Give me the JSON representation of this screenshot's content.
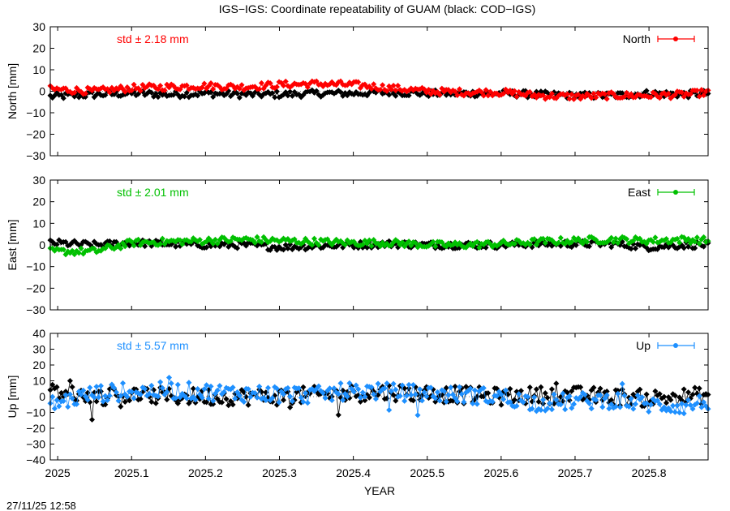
{
  "title": "IGS−IGS: Coordinate repeatability of GUAM (black: COD−IGS)",
  "timestamp": "27/11/25 12:58",
  "xlabel": "YEAR",
  "x_ticks": [
    "2025",
    "2025.1",
    "2025.2",
    "2025.3",
    "2025.4",
    "2025.5",
    "2025.6",
    "2025.7",
    "2025.8"
  ],
  "chart_data": [
    {
      "type": "line",
      "panel": "north",
      "ylabel": "North [mm]",
      "legend": "North",
      "std_label": "std ± 2.18 mm",
      "color": "#ff0000",
      "ref_color": "#000000",
      "legend_position": "top-right",
      "xlim": [
        2024.99,
        2025.88
      ],
      "ylim": [
        -30,
        30
      ],
      "y_ticks": [
        "30",
        "20",
        "10",
        "0",
        "−10",
        "−20",
        "−30"
      ],
      "main_series": {
        "name": "North",
        "x": [
          2024.99,
          2025.05,
          2025.1,
          2025.15,
          2025.2,
          2025.25,
          2025.3,
          2025.35,
          2025.4,
          2025.45,
          2025.5,
          2025.55,
          2025.6,
          2025.65,
          2025.7,
          2025.75,
          2025.8,
          2025.85,
          2025.88
        ],
        "y": [
          1,
          0,
          1.5,
          2,
          2.5,
          2,
          3,
          3.5,
          3,
          1.5,
          0,
          -0.5,
          -0.5,
          -2,
          -2.5,
          -2,
          -2,
          -1.5,
          -0.5
        ]
      },
      "reference_series": {
        "x": [
          2024.99,
          2025.05,
          2025.1,
          2025.15,
          2025.2,
          2025.25,
          2025.3,
          2025.35,
          2025.4,
          2025.45,
          2025.5,
          2025.55,
          2025.6,
          2025.65,
          2025.7,
          2025.75,
          2025.8,
          2025.85,
          2025.88
        ],
        "y": [
          -2.5,
          -1.5,
          -1,
          -1.5,
          -1,
          -1.5,
          -1.5,
          -1,
          -1,
          -0.5,
          -1,
          -1,
          -1,
          -1.5,
          -2,
          -2,
          -1,
          -1.5,
          -1
        ]
      }
    },
    {
      "type": "line",
      "panel": "east",
      "ylabel": "East [mm]",
      "legend": "East",
      "std_label": "std ± 2.01 mm",
      "color": "#00c000",
      "ref_color": "#000000",
      "legend_position": "top-right",
      "xlim": [
        2024.99,
        2025.88
      ],
      "ylim": [
        -30,
        30
      ],
      "y_ticks": [
        "30",
        "20",
        "10",
        "0",
        "−10",
        "−20",
        "−30"
      ],
      "main_series": {
        "name": "East",
        "x": [
          2024.99,
          2025.05,
          2025.1,
          2025.15,
          2025.2,
          2025.25,
          2025.3,
          2025.35,
          2025.4,
          2025.45,
          2025.5,
          2025.55,
          2025.6,
          2025.65,
          2025.7,
          2025.75,
          2025.8,
          2025.85,
          2025.88
        ],
        "y": [
          -3,
          -3,
          1,
          1.5,
          2,
          2.5,
          2,
          1.5,
          1,
          1,
          0,
          0,
          0.5,
          1.5,
          2,
          2.5,
          2,
          2.5,
          2
        ]
      },
      "reference_series": {
        "x": [
          2024.99,
          2025.05,
          2025.1,
          2025.15,
          2025.2,
          2025.25,
          2025.3,
          2025.35,
          2025.4,
          2025.45,
          2025.5,
          2025.55,
          2025.6,
          2025.65,
          2025.7,
          2025.75,
          2025.8,
          2025.85,
          2025.88
        ],
        "y": [
          1,
          0,
          1,
          0.5,
          0,
          0,
          -1,
          -0.5,
          0,
          0.5,
          0,
          0,
          0,
          0.5,
          0.5,
          0.5,
          -1,
          0,
          0
        ]
      }
    },
    {
      "type": "line",
      "panel": "up",
      "ylabel": "Up [mm]",
      "legend": "Up",
      "std_label": "std ± 5.57 mm",
      "color": "#1e90ff",
      "ref_color": "#000000",
      "legend_position": "top-right",
      "xlim": [
        2024.99,
        2025.88
      ],
      "ylim": [
        -40,
        40
      ],
      "y_ticks": [
        "40",
        "30",
        "20",
        "10",
        "0",
        "−10",
        "−20",
        "−30",
        "−40"
      ],
      "main_series": {
        "name": "Up",
        "x": [
          2024.99,
          2025.05,
          2025.1,
          2025.15,
          2025.2,
          2025.25,
          2025.3,
          2025.35,
          2025.4,
          2025.45,
          2025.5,
          2025.55,
          2025.6,
          2025.65,
          2025.7,
          2025.75,
          2025.8,
          2025.85,
          2025.88
        ],
        "y": [
          -5,
          2,
          3,
          4,
          3,
          2,
          2,
          1,
          4,
          3,
          2,
          1,
          0,
          -4,
          -3,
          -2,
          -5,
          -6,
          -3
        ]
      },
      "reference_series": {
        "x": [
          2024.99,
          2025.05,
          2025.1,
          2025.15,
          2025.2,
          2025.25,
          2025.3,
          2025.35,
          2025.4,
          2025.45,
          2025.5,
          2025.55,
          2025.6,
          2025.65,
          2025.7,
          2025.75,
          2025.8,
          2025.85,
          2025.88
        ],
        "y": [
          3,
          0,
          1,
          0,
          0,
          0,
          0,
          1,
          2,
          3,
          2,
          1,
          0,
          1,
          1,
          0,
          -1,
          0,
          1
        ]
      }
    }
  ]
}
